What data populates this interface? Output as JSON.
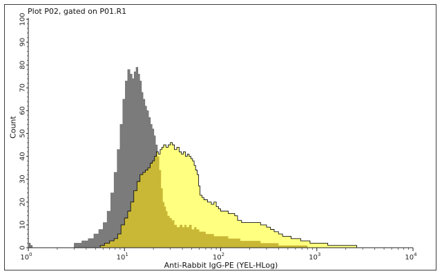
{
  "title": "Plot P02, gated on P01.R1",
  "chart_data": {
    "type": "area",
    "title": "Plot P02, gated on P01.R1",
    "xlabel": "Anti-Rabbit IgG-PE (YEL-HLog)",
    "ylabel": "Count",
    "x_scale": "log",
    "xlim": [
      1,
      10000
    ],
    "ylim": [
      0,
      100
    ],
    "x_ticks": [
      {
        "value": 1,
        "base": "10",
        "exp": "0"
      },
      {
        "value": 10,
        "base": "10",
        "exp": "1"
      },
      {
        "value": 100,
        "base": "10",
        "exp": "2"
      },
      {
        "value": 1000,
        "base": "10",
        "exp": "3"
      },
      {
        "value": 10000,
        "base": "10",
        "exp": "4"
      }
    ],
    "y_ticks": [
      "0",
      "10",
      "20",
      "30",
      "40",
      "50",
      "60",
      "70",
      "80",
      "90",
      "100"
    ],
    "grid": false,
    "legend": "none",
    "series": [
      {
        "color": "#7b7b7b",
        "points": [
          [
            1.0,
            0
          ],
          [
            1.02,
            2
          ],
          [
            1.05,
            1
          ],
          [
            1.1,
            0
          ],
          [
            2.7,
            0
          ],
          [
            3.0,
            2
          ],
          [
            3.6,
            3
          ],
          [
            4.2,
            4
          ],
          [
            4.8,
            6
          ],
          [
            5.4,
            8
          ],
          [
            6.0,
            11
          ],
          [
            6.6,
            16
          ],
          [
            7.2,
            24
          ],
          [
            7.8,
            33
          ],
          [
            8.4,
            43
          ],
          [
            9.0,
            54
          ],
          [
            9.6,
            65
          ],
          [
            10.2,
            73
          ],
          [
            10.8,
            78
          ],
          [
            11.4,
            76
          ],
          [
            12.0,
            74
          ],
          [
            12.6,
            77
          ],
          [
            13.2,
            79
          ],
          [
            13.8,
            76
          ],
          [
            14.4,
            73
          ],
          [
            15.0,
            68
          ],
          [
            15.6,
            65
          ],
          [
            16.3,
            62
          ],
          [
            17.0,
            60
          ],
          [
            17.8,
            57
          ],
          [
            18.6,
            54
          ],
          [
            19.4,
            52
          ],
          [
            20.2,
            49
          ],
          [
            21.0,
            45
          ],
          [
            22.0,
            40
          ],
          [
            23.0,
            34
          ],
          [
            24.0,
            26
          ],
          [
            25.0,
            20
          ],
          [
            26.0,
            18
          ],
          [
            27.0,
            16
          ],
          [
            28.0,
            14
          ],
          [
            29.5,
            13
          ],
          [
            31.0,
            12
          ],
          [
            33.0,
            10
          ],
          [
            35.0,
            9
          ],
          [
            37.5,
            10
          ],
          [
            40.0,
            9
          ],
          [
            42.0,
            10
          ],
          [
            44.0,
            9
          ],
          [
            47.0,
            10
          ],
          [
            50.0,
            8
          ],
          [
            53.0,
            9
          ],
          [
            56.0,
            8
          ],
          [
            60.0,
            7
          ],
          [
            64.0,
            7
          ],
          [
            70.0,
            6
          ],
          [
            78.0,
            6
          ],
          [
            85.0,
            5
          ],
          [
            95.0,
            5
          ],
          [
            105.0,
            5
          ],
          [
            120.0,
            4
          ],
          [
            140.0,
            4
          ],
          [
            160.0,
            3
          ],
          [
            180.0,
            3
          ],
          [
            200.0,
            3
          ],
          [
            230.0,
            3
          ],
          [
            260.0,
            2
          ],
          [
            300.0,
            2
          ],
          [
            350.0,
            2
          ],
          [
            400.0,
            1
          ],
          [
            500.0,
            1
          ],
          [
            600.0,
            1
          ],
          [
            800.0,
            0
          ]
        ]
      },
      {
        "color": "#ffff80",
        "points": [
          [
            1.0,
            0
          ],
          [
            5.2,
            0
          ],
          [
            5.6,
            1
          ],
          [
            6.2,
            2
          ],
          [
            7.0,
            3
          ],
          [
            7.8,
            4
          ],
          [
            8.5,
            6
          ],
          [
            9.2,
            10
          ],
          [
            10.0,
            13
          ],
          [
            10.8,
            16
          ],
          [
            11.6,
            20
          ],
          [
            12.5,
            25
          ],
          [
            13.5,
            29
          ],
          [
            14.5,
            32
          ],
          [
            15.5,
            33
          ],
          [
            16.5,
            34
          ],
          [
            17.5,
            35
          ],
          [
            18.5,
            37
          ],
          [
            19.5,
            38
          ],
          [
            20.5,
            40
          ],
          [
            21.5,
            42
          ],
          [
            22.5,
            41
          ],
          [
            23.5,
            43
          ],
          [
            24.5,
            44
          ],
          [
            25.5,
            45
          ],
          [
            27.0,
            44
          ],
          [
            28.5,
            45
          ],
          [
            30.0,
            46
          ],
          [
            31.5,
            45
          ],
          [
            33.0,
            43
          ],
          [
            35.0,
            44
          ],
          [
            37.0,
            42
          ],
          [
            39.0,
            41
          ],
          [
            41.0,
            42
          ],
          [
            43.0,
            40
          ],
          [
            45.0,
            41
          ],
          [
            47.0,
            40
          ],
          [
            49.0,
            39
          ],
          [
            51.0,
            38
          ],
          [
            53.0,
            36
          ],
          [
            55.0,
            34
          ],
          [
            57.0,
            32
          ],
          [
            59.0,
            27
          ],
          [
            61.0,
            23
          ],
          [
            64.0,
            22
          ],
          [
            67.0,
            21
          ],
          [
            70.0,
            21
          ],
          [
            73.0,
            20
          ],
          [
            76.0,
            20
          ],
          [
            80.0,
            19
          ],
          [
            85.0,
            20
          ],
          [
            90.0,
            18
          ],
          [
            95.0,
            17
          ],
          [
            100.0,
            16
          ],
          [
            110.0,
            16
          ],
          [
            120.0,
            15
          ],
          [
            130.0,
            15
          ],
          [
            140.0,
            14
          ],
          [
            150.0,
            12
          ],
          [
            165.0,
            11
          ],
          [
            180.0,
            11
          ],
          [
            200.0,
            11
          ],
          [
            230.0,
            11
          ],
          [
            260.0,
            10
          ],
          [
            300.0,
            9
          ],
          [
            330.0,
            8
          ],
          [
            360.0,
            7
          ],
          [
            400.0,
            6
          ],
          [
            440.0,
            5
          ],
          [
            480.0,
            5
          ],
          [
            540.0,
            4
          ],
          [
            600.0,
            4
          ],
          [
            680.0,
            3
          ],
          [
            760.0,
            3
          ],
          [
            850.0,
            2
          ],
          [
            950.0,
            2
          ],
          [
            1100.0,
            2
          ],
          [
            1300.0,
            1
          ],
          [
            1500.0,
            1
          ],
          [
            1800.0,
            1
          ],
          [
            2200.0,
            1
          ],
          [
            2600.0,
            0
          ]
        ]
      }
    ]
  }
}
